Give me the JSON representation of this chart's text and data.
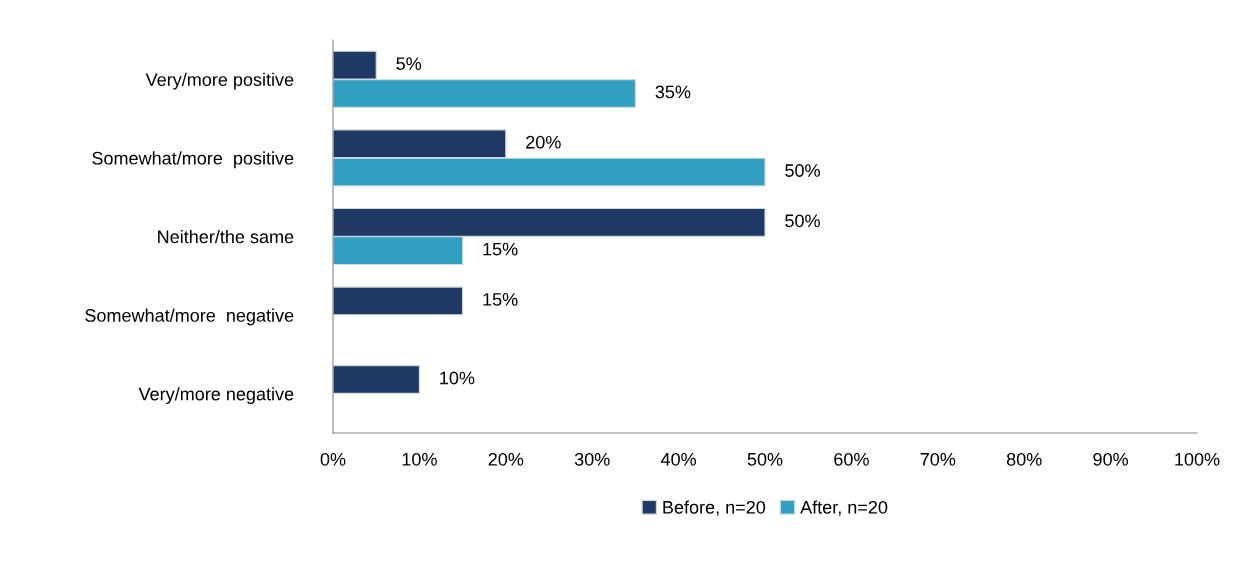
{
  "chart_data": {
    "type": "bar",
    "orientation": "horizontal",
    "categories": [
      "Very/more positive",
      "Somewhat/more  positive",
      "Neither/the same",
      "Somewhat/more  negative",
      "Very/more negative"
    ],
    "series": [
      {
        "name": "Before, n=20",
        "color": "#1f3864",
        "values": [
          5,
          20,
          50,
          15,
          10
        ],
        "value_labels": [
          "5%",
          "20%",
          "50%",
          "15%",
          "10%"
        ]
      },
      {
        "name": "After, n=20",
        "color": "#31a0c0",
        "values": [
          35,
          50,
          15,
          null,
          null
        ],
        "value_labels": [
          "35%",
          "50%",
          "15%",
          null,
          null
        ]
      }
    ],
    "xlim": [
      0,
      100
    ],
    "xticks": [
      {
        "value": 0,
        "label": "0%"
      },
      {
        "value": 10,
        "label": "10%"
      },
      {
        "value": 20,
        "label": "20%"
      },
      {
        "value": 30,
        "label": "30%"
      },
      {
        "value": 40,
        "label": "40%"
      },
      {
        "value": 50,
        "label": "50%"
      },
      {
        "value": 60,
        "label": "60%"
      },
      {
        "value": 70,
        "label": "70%"
      },
      {
        "value": 80,
        "label": "80%"
      },
      {
        "value": 90,
        "label": "90%"
      },
      {
        "value": 100,
        "label": "100%"
      }
    ],
    "grid": false,
    "legend": "bottom"
  }
}
